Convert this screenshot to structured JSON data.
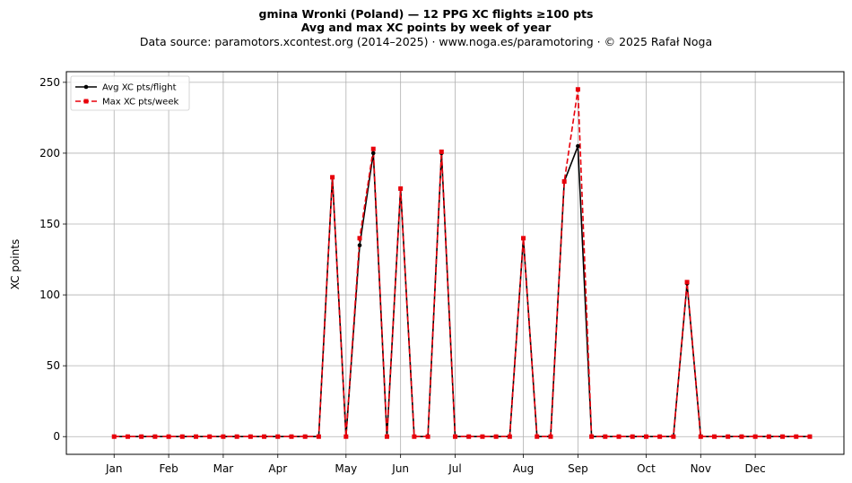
{
  "chart_data": {
    "type": "line",
    "title": "gmina Wronki (Poland)  —  12 PPG XC flights ≥100 pts",
    "subtitle": "Avg and max XC points by week of year",
    "source": "Data source: paramotors.xcontest.org (2014–2025)  ·  www.noga.es/paramotoring  ·  © 2025 Rafał Noga",
    "ylabel": "XC points",
    "xlabel": "",
    "xlim": [
      -2.5,
      54.5
    ],
    "ylim": [
      -12.5,
      257.5
    ],
    "grid": true,
    "legend_position": "top-left",
    "month_ticks": [
      {
        "label": "Jan",
        "week": 1
      },
      {
        "label": "Feb",
        "week": 5
      },
      {
        "label": "Mar",
        "week": 9
      },
      {
        "label": "Apr",
        "week": 13
      },
      {
        "label": "May",
        "week": 18
      },
      {
        "label": "Jun",
        "week": 22
      },
      {
        "label": "Jul",
        "week": 26
      },
      {
        "label": "Aug",
        "week": 31
      },
      {
        "label": "Sep",
        "week": 35
      },
      {
        "label": "Oct",
        "week": 40
      },
      {
        "label": "Nov",
        "week": 44
      },
      {
        "label": "Dec",
        "week": 48
      }
    ],
    "y_ticks": [
      0,
      50,
      100,
      150,
      200,
      250
    ],
    "x": [
      1,
      2,
      3,
      4,
      5,
      6,
      7,
      8,
      9,
      10,
      11,
      12,
      13,
      14,
      15,
      16,
      17,
      18,
      19,
      20,
      21,
      22,
      23,
      24,
      25,
      26,
      27,
      28,
      29,
      30,
      31,
      32,
      33,
      34,
      35,
      36,
      37,
      38,
      39,
      40,
      41,
      42,
      43,
      44,
      45,
      46,
      47,
      48,
      49,
      50,
      51,
      52
    ],
    "series": [
      {
        "name": "Avg XC pts/flight",
        "color": "#000000",
        "style": "solid",
        "marker": "circle",
        "values": [
          0,
          0,
          0,
          0,
          0,
          0,
          0,
          0,
          0,
          0,
          0,
          0,
          0,
          0,
          0,
          0,
          183,
          0,
          135,
          200,
          0,
          175,
          0,
          0,
          200,
          0,
          0,
          0,
          0,
          0,
          140,
          0,
          0,
          180,
          205,
          0,
          0,
          0,
          0,
          0,
          0,
          0,
          108,
          0,
          0,
          0,
          0,
          0,
          0,
          0,
          0,
          0
        ]
      },
      {
        "name": "Max XC pts/week",
        "color": "#e8000b",
        "style": "dashed",
        "marker": "square",
        "values": [
          0,
          0,
          0,
          0,
          0,
          0,
          0,
          0,
          0,
          0,
          0,
          0,
          0,
          0,
          0,
          0,
          183,
          0,
          140,
          203,
          0,
          175,
          0,
          0,
          201,
          0,
          0,
          0,
          0,
          0,
          140,
          0,
          0,
          180,
          245,
          0,
          0,
          0,
          0,
          0,
          0,
          0,
          109,
          0,
          0,
          0,
          0,
          0,
          0,
          0,
          0,
          0
        ]
      }
    ]
  }
}
